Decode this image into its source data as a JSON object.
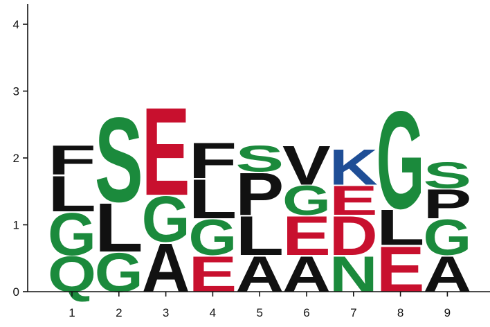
{
  "chart_data": {
    "type": "sequence-logo",
    "title": "",
    "xlabel": "",
    "ylabel": "",
    "ylim": [
      0,
      4.3
    ],
    "y_ticks": [
      "0",
      "1",
      "2",
      "3",
      "4"
    ],
    "x_ticks": [
      "1",
      "2",
      "3",
      "4",
      "5",
      "6",
      "7",
      "8",
      "9"
    ],
    "colors": {
      "black": "#111111",
      "green": "#1b8a3c",
      "red": "#c8102e",
      "blue": "#1f4e96"
    },
    "positions": [
      {
        "position": "1",
        "stack": [
          {
            "letter": "Q",
            "height": 0.55,
            "color": "green"
          },
          {
            "letter": "G",
            "height": 0.65,
            "color": "green"
          },
          {
            "letter": "L",
            "height": 0.55,
            "color": "black"
          },
          {
            "letter": "F",
            "height": 0.45,
            "color": "black"
          }
        ]
      },
      {
        "position": "2",
        "stack": [
          {
            "letter": "G",
            "height": 0.6,
            "color": "green"
          },
          {
            "letter": "L",
            "height": 0.75,
            "color": "black"
          },
          {
            "letter": "S",
            "height": 1.3,
            "color": "green"
          }
        ]
      },
      {
        "position": "3",
        "stack": [
          {
            "letter": "A",
            "height": 0.75,
            "color": "black"
          },
          {
            "letter": "G",
            "height": 0.7,
            "color": "green"
          },
          {
            "letter": "E",
            "height": 1.35,
            "color": "red"
          }
        ]
      },
      {
        "position": "4",
        "stack": [
          {
            "letter": "E",
            "height": 0.55,
            "color": "red"
          },
          {
            "letter": "G",
            "height": 0.55,
            "color": "green"
          },
          {
            "letter": "L",
            "height": 0.6,
            "color": "black"
          },
          {
            "letter": "F",
            "height": 0.55,
            "color": "black"
          }
        ]
      },
      {
        "position": "5",
        "stack": [
          {
            "letter": "A",
            "height": 0.55,
            "color": "black"
          },
          {
            "letter": "L",
            "height": 0.6,
            "color": "black"
          },
          {
            "letter": "P",
            "height": 0.65,
            "color": "black"
          },
          {
            "letter": "S",
            "height": 0.4,
            "color": "green"
          }
        ]
      },
      {
        "position": "6",
        "stack": [
          {
            "letter": "A",
            "height": 0.55,
            "color": "black"
          },
          {
            "letter": "E",
            "height": 0.6,
            "color": "red"
          },
          {
            "letter": "G",
            "height": 0.45,
            "color": "green"
          },
          {
            "letter": "V",
            "height": 0.6,
            "color": "black"
          }
        ]
      },
      {
        "position": "7",
        "stack": [
          {
            "letter": "N",
            "height": 0.55,
            "color": "green"
          },
          {
            "letter": "D",
            "height": 0.6,
            "color": "red"
          },
          {
            "letter": "E",
            "height": 0.45,
            "color": "red"
          },
          {
            "letter": "K",
            "height": 0.55,
            "color": "blue"
          }
        ]
      },
      {
        "position": "8",
        "stack": [
          {
            "letter": "E",
            "height": 0.7,
            "color": "red"
          },
          {
            "letter": "L",
            "height": 0.55,
            "color": "black"
          },
          {
            "letter": "G",
            "height": 1.5,
            "color": "green"
          }
        ]
      },
      {
        "position": "9",
        "stack": [
          {
            "letter": "A",
            "height": 0.55,
            "color": "black"
          },
          {
            "letter": "G",
            "height": 0.55,
            "color": "green"
          },
          {
            "letter": "P",
            "height": 0.45,
            "color": "black"
          },
          {
            "letter": "S",
            "height": 0.4,
            "color": "green"
          }
        ]
      }
    ]
  }
}
